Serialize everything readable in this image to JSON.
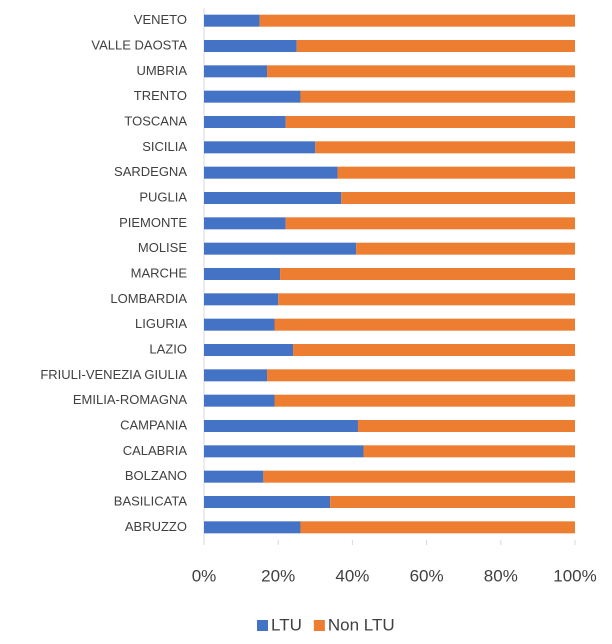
{
  "chart_data": {
    "type": "stacked_bar_horizontal",
    "categories": [
      "VENETO",
      "VALLE DAOSTA",
      "UMBRIA",
      "TRENTO",
      "TOSCANA",
      "SICILIA",
      "SARDEGNA",
      "PUGLIA",
      "PIEMONTE",
      "MOLISE",
      "MARCHE",
      "LOMBARDIA",
      "LIGURIA",
      "LAZIO",
      "FRIULI-VENEZIA GIULIA",
      "EMILIA-ROMAGNA",
      "CAMPANIA",
      "CALABRIA",
      "BOLZANO",
      "BASILICATA",
      "ABRUZZO"
    ],
    "series": [
      {
        "name": "LTU",
        "color": "#4472c4",
        "values": [
          15,
          25,
          17,
          26,
          22,
          30,
          36,
          37,
          22,
          41,
          20.5,
          20,
          19,
          24,
          17,
          19,
          41.5,
          43,
          16,
          34,
          26
        ]
      },
      {
        "name": "Non LTU",
        "color": "#ed7d31",
        "values": [
          85,
          75,
          83,
          74,
          78,
          70,
          64,
          63,
          78,
          59,
          79.5,
          80,
          81,
          76,
          83,
          81,
          58.5,
          57,
          84,
          66,
          74
        ]
      }
    ],
    "xlim": [
      0,
      100
    ],
    "xticks": [
      {
        "value": 0,
        "label": "0%"
      },
      {
        "value": 20,
        "label": "20%"
      },
      {
        "value": 40,
        "label": "40%"
      },
      {
        "value": 60,
        "label": "60%"
      },
      {
        "value": 80,
        "label": "80%"
      },
      {
        "value": 100,
        "label": "100%"
      }
    ],
    "legend": "bottom",
    "grid": false
  }
}
